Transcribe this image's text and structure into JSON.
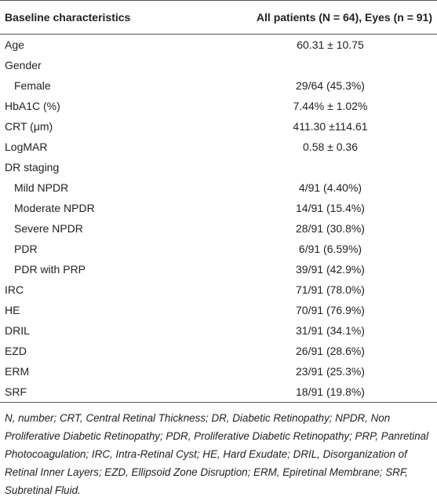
{
  "table": {
    "header": [
      "Baseline characteristics",
      "All patients (N = 64), Eyes (n = 91)"
    ],
    "rows": [
      {
        "label": "Age",
        "value": "60.31 ± 10.75"
      },
      {
        "label": "Gender",
        "children": [
          {
            "label": "Female",
            "value": "29/64 (45.3%)"
          }
        ]
      },
      {
        "label": "HbA1C (%)",
        "value": "7.44% ± 1.02%"
      },
      {
        "label": "CRT (μm)",
        "value": "411.30 ±114.61"
      },
      {
        "label": "LogMAR",
        "value": "0.58 ± 0.36"
      },
      {
        "label": "DR staging",
        "children": [
          {
            "label": "Mild NPDR",
            "value": "4/91 (4.40%)"
          },
          {
            "label": "Moderate NPDR",
            "value": "14/91 (15.4%)"
          },
          {
            "label": "Severe NPDR",
            "value": "28/91 (30.8%)"
          },
          {
            "label": "PDR",
            "value": "6/91 (6.59%)"
          },
          {
            "label": "PDR with PRP",
            "value": "39/91 (42.9%)"
          }
        ]
      },
      {
        "label": "IRC",
        "value": "71/91 (78.0%)"
      },
      {
        "label": "HE",
        "value": "70/91 (76.9%)"
      },
      {
        "label": "DRIL",
        "value": "31/91 (34.1%)"
      },
      {
        "label": "EZD",
        "value": "26/91 (28.6%)"
      },
      {
        "label": "ERM",
        "value": "23/91 (25.3%)"
      },
      {
        "label": "SRF",
        "value": "18/91 (19.8%)"
      }
    ],
    "footnote": "N, number; CRT, Central Retinal Thickness; DR, Diabetic Retinopathy; NPDR, Non Proliferative Diabetic Retinopathy; PDR, Proliferative Diabetic Retinopathy; PRP, Panretinal Photocoagulation; IRC, Intra-Retinal Cyst; HE, Hard Exudate; DRIL, Disorganization of Retinal Inner Layers; EZD, Ellipsoid Zone Disruption; ERM, Epiretinal Membrane; SRF, Subretinal Fluid."
  }
}
